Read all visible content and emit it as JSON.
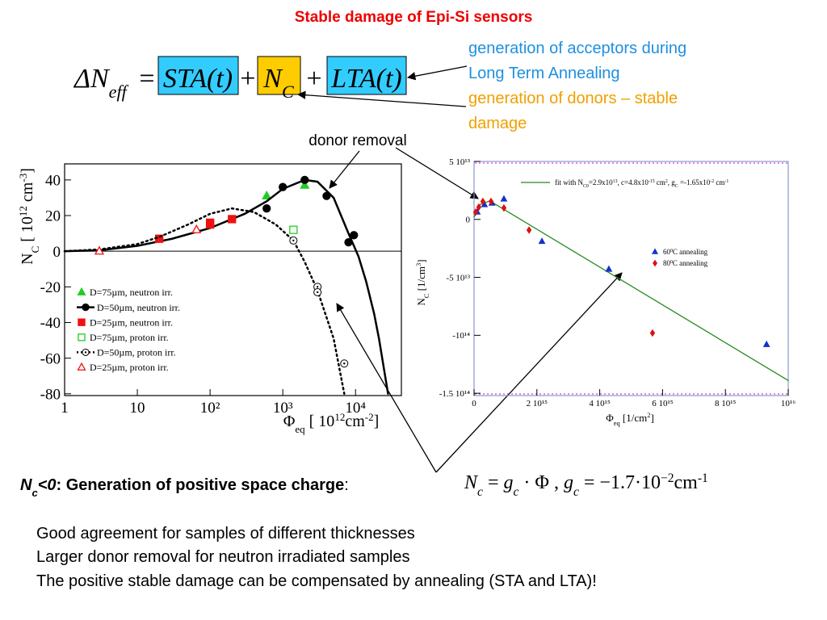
{
  "title": "Stable damage of Epi-Si sensors",
  "equation": {
    "lhs": [
      {
        "text": "ΔN"
      },
      {
        "text": "eff",
        "shift": "sub"
      }
    ],
    "eq": "=",
    "sta": "STA(t)",
    "plus1": "+",
    "nc": [
      {
        "text": "N"
      },
      {
        "text": "C",
        "shift": "sub"
      }
    ],
    "plus2": "+",
    "lta": "LTA(t)"
  },
  "annotations": {
    "acceptors": [
      "generation of acceptors during",
      "Long Term Annealing"
    ],
    "donors": [
      "generation of donors – stable",
      "damage"
    ],
    "donor_removal": "donor removal"
  },
  "chart_data": [
    {
      "type": "scatter",
      "xscale": "log",
      "xlim": [
        1,
        42700
      ],
      "ylim": [
        -81,
        49
      ],
      "xticks": [
        1,
        10,
        {
          "value": 100,
          "label": "10²"
        },
        {
          "value": 1000,
          "label": "10³"
        },
        {
          "value": 10000,
          "label": "10⁴"
        }
      ],
      "yticks": [
        40,
        20,
        0,
        -20,
        -40,
        -60,
        -80
      ],
      "axhline": 0,
      "legend": "lower left",
      "ylabel": [
        {
          "text": "N"
        },
        {
          "text": "C",
          "shift": "sub"
        },
        {
          "text": " [ 10"
        },
        {
          "text": "12",
          "shift": "super"
        },
        {
          "text": " cm"
        },
        {
          "text": "-3",
          "shift": "super"
        },
        {
          "text": "]"
        }
      ],
      "xlabel": [
        {
          "text": "Φ"
        },
        {
          "text": "eq",
          "shift": "sub"
        },
        {
          "text": "  [ 10"
        },
        {
          "text": "12",
          "shift": "super"
        },
        {
          "text": "cm"
        },
        {
          "text": "-2",
          "shift": "super"
        },
        {
          "text": "]"
        }
      ],
      "series": [
        {
          "name": "D=75µm, neutron irr.",
          "color": "#22cc22",
          "marker": "triangle",
          "filled": true,
          "x": [
            600,
            2000
          ],
          "values": [
            31,
            37
          ]
        },
        {
          "name": "D=50µm, neutron irr.",
          "color": "#000000",
          "marker": "circle",
          "filled": true,
          "x": [
            600,
            1000,
            2000,
            4000,
            8000,
            9500
          ],
          "values": [
            24,
            36,
            40,
            31,
            5,
            9
          ],
          "fit": {
            "style": "solid",
            "x": [
              1,
              3,
              10,
              30,
              100,
              300,
              600,
              1000,
              2000,
              3000,
              5000,
              8000,
              11000,
              14000,
              18000,
              21000,
              28000
            ],
            "values": [
              0,
              0.5,
              3,
              7,
              13,
              21,
              28,
              35,
              40,
              39,
              30,
              10,
              -3,
              -17,
              -35,
              -49,
              -80
            ]
          }
        },
        {
          "name": "D=25µm, neutron irr.",
          "color": "#ee1111",
          "marker": "square",
          "filled": true,
          "x": [
            20,
            100,
            100,
            200
          ],
          "values": [
            7,
            15,
            16,
            18
          ]
        },
        {
          "name": "D=75µm, proton irr.",
          "color": "#22cc22",
          "marker": "square",
          "filled": false,
          "x": [
            1400
          ],
          "values": [
            12
          ]
        },
        {
          "name": "D=50µm, proton irr.",
          "color": "#000000",
          "marker": "circle-dot",
          "filled": false,
          "x": [
            1400,
            3000,
            3000,
            7000
          ],
          "values": [
            6,
            -20,
            -23,
            -63
          ],
          "fit": {
            "style": "dotted",
            "x": [
              1,
              3,
              10,
              20,
              50,
              100,
              200,
              400,
              800,
              1400,
              2000,
              3000,
              5000,
              7000
            ],
            "values": [
              0,
              1,
              4,
              8,
              15,
              21,
              24,
              22,
              15,
              6,
              -6,
              -22,
              -49,
              -80
            ]
          }
        },
        {
          "name": "D=25µm, proton irr.",
          "color": "#ee1111",
          "marker": "triangle",
          "filled": false,
          "x": [
            3,
            65
          ],
          "values": [
            0,
            12
          ]
        }
      ]
    },
    {
      "type": "scatter",
      "xscale": "linear",
      "xlim": [
        0,
        1e+16
      ],
      "ylim": [
        -152000000000000.0,
        50000000000000.0
      ],
      "xticks": [
        0,
        {
          "value": 2000000000000000.0,
          "label": "2 10¹⁵"
        },
        {
          "value": 4000000000000000.0,
          "label": "4 10¹⁵"
        },
        {
          "value": 6000000000000000.0,
          "label": "6 10¹⁵"
        },
        {
          "value": 8000000000000000.0,
          "label": "8 10¹⁵"
        },
        {
          "value": 1e+16,
          "label": "10¹⁶"
        }
      ],
      "yticks": [
        {
          "value": 50000000000000.0,
          "label": "5 10¹³"
        },
        0,
        {
          "value": -50000000000000.0,
          "label": "-5 10¹³"
        },
        {
          "value": -100000000000000.0,
          "label": "-10¹⁴"
        },
        {
          "value": -150000000000000.0,
          "label": "-1.5 10¹⁴"
        }
      ],
      "legend": "upper right",
      "ylabel": [
        {
          "text": "N"
        },
        {
          "text": "C",
          "shift": "sub"
        },
        {
          "text": " [1/cm"
        },
        {
          "text": "3",
          "shift": "super"
        },
        {
          "text": "]"
        }
      ],
      "xlabel": [
        {
          "text": "Φ"
        },
        {
          "text": "eq",
          "shift": "sub"
        },
        {
          "text": " [1/cm"
        },
        {
          "text": "2",
          "shift": "super"
        },
        {
          "text": "]"
        }
      ],
      "series": [
        {
          "name": [
            {
              "text": "fit with N"
            },
            {
              "text": "C0",
              "shift": "sub"
            },
            {
              "text": "=2.9x10"
            },
            {
              "text": "13",
              "shift": "super"
            },
            {
              "text": ", c=4.8x10"
            },
            {
              "text": "-15",
              "shift": "super"
            },
            {
              "text": " cm"
            },
            {
              "text": "2",
              "shift": "super"
            },
            {
              "text": ", g"
            },
            {
              "text": "C",
              "shift": "sub"
            },
            {
              "text": " =-1.65x10"
            },
            {
              "text": "-2",
              "shift": "super"
            },
            {
              "text": " cm"
            },
            {
              "text": "-1",
              "shift": "super"
            }
          ],
          "color": "#228b22",
          "kind": "line",
          "x": [
            0,
            200000000000000.0,
            500000000000000.0,
            1e+16
          ],
          "values": [
            2000000000000.0,
            13000000000000.0,
            16000000000000.0,
            -139000000000000.0
          ]
        },
        {
          "name": [
            {
              "text": "60"
            },
            {
              "text": "0",
              "shift": "super"
            },
            {
              "text": "C annealing"
            }
          ],
          "color": "#1133cc",
          "marker": "triangle",
          "filled": true,
          "x": [
            100000000000000.0,
            330000000000000.0,
            570000000000000.0,
            950000000000000.0,
            2160000000000000.0,
            4290000000000000.0,
            9310000000000000.0
          ],
          "values": [
            6300000000000.0,
            12700000000000.0,
            14000000000000.0,
            17600000000000.0,
            -19000000000000.0,
            -43000000000000.0,
            -108000000000000.0
          ]
        },
        {
          "name": [
            {
              "text": "80"
            },
            {
              "text": "0",
              "shift": "super"
            },
            {
              "text": "C annealing"
            }
          ],
          "color": "#dd1111",
          "marker": "diamond",
          "filled": true,
          "x": [
            50000000000000.0,
            150000000000000.0,
            280000000000000.0,
            540000000000000.0,
            950000000000000.0,
            1750000000000000.0,
            5680000000000000.0
          ],
          "values": [
            6300000000000.0,
            10600000000000.0,
            15500000000000.0,
            15500000000000.0,
            9900000000000.0,
            -9200000000000.0,
            -98000000000000.0
          ]
        }
      ]
    }
  ],
  "conclusion": {
    "heading": [
      {
        "text": "N",
        "bold": true,
        "italic": true
      },
      {
        "text": "c",
        "shift": "sub",
        "bold": true,
        "italic": true
      },
      {
        "text": "<0",
        "bold": true,
        "italic": true
      },
      {
        "text": ":   Generation of positive space charge",
        "bold": true
      },
      {
        "text": ":"
      }
    ],
    "formula": [
      {
        "text": "N",
        "italic": true
      },
      {
        "text": "c",
        "shift": "sub",
        "italic": true
      },
      {
        "text": " = "
      },
      {
        "text": "g",
        "italic": true
      },
      {
        "text": "c",
        "shift": "sub",
        "italic": true
      },
      {
        "text": " · Φ     , "
      },
      {
        "text": "g",
        "italic": true
      },
      {
        "text": "c",
        "shift": "sub",
        "italic": true
      },
      {
        "text": " = −1.7·10"
      },
      {
        "text": "−2",
        "shift": "super"
      },
      {
        "text": "cm"
      },
      {
        "text": "-1",
        "shift": "super"
      }
    ]
  },
  "bullets": [
    "Good agreement for samples of different thicknesses",
    "Larger donor removal for neutron irradiated samples",
    "The positive stable damage can be compensated by annealing (STA and LTA)!"
  ]
}
